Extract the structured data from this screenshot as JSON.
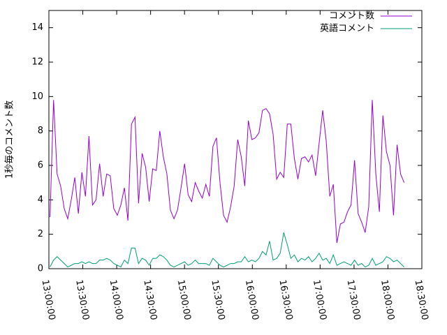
{
  "chart_data": {
    "type": "line",
    "ylabel": "1秒毎のコメント数",
    "x": [
      "13:01:00",
      "13:04:08",
      "13:07:16",
      "13:10:24",
      "13:13:32",
      "13:16:40",
      "13:19:48",
      "13:22:56",
      "13:26:04",
      "13:29:12",
      "13:32:20",
      "13:35:28",
      "13:38:36",
      "13:41:44",
      "13:44:52",
      "13:48:00",
      "13:51:08",
      "13:54:16",
      "13:57:24",
      "14:00:32",
      "14:03:40",
      "14:06:48",
      "14:09:56",
      "14:13:04",
      "14:16:12",
      "14:19:20",
      "14:22:28",
      "14:25:36",
      "14:28:44",
      "14:31:52",
      "14:35:00",
      "14:38:08",
      "14:41:16",
      "14:44:24",
      "14:47:32",
      "14:50:40",
      "14:53:48",
      "14:56:56",
      "15:00:04",
      "15:03:12",
      "15:06:20",
      "15:09:28",
      "15:12:36",
      "15:15:44",
      "15:18:52",
      "15:22:00",
      "15:25:08",
      "15:28:16",
      "15:31:24",
      "15:34:32",
      "15:37:40",
      "15:40:48",
      "15:43:56",
      "15:47:04",
      "15:50:12",
      "15:53:20",
      "15:56:28",
      "15:59:36",
      "16:02:44",
      "16:05:52",
      "16:09:00",
      "16:12:08",
      "16:15:16",
      "16:18:24",
      "16:21:32",
      "16:24:40",
      "16:27:48",
      "16:30:56",
      "16:34:04",
      "16:37:12",
      "16:40:20",
      "16:43:28",
      "16:46:36",
      "16:49:44",
      "16:52:52",
      "16:56:00",
      "16:59:08",
      "17:02:16",
      "17:05:24",
      "17:08:32",
      "17:11:40",
      "17:14:48",
      "17:17:56",
      "17:21:04",
      "17:24:12",
      "17:27:20",
      "17:30:28",
      "17:33:36",
      "17:36:44",
      "17:39:52",
      "17:43:00",
      "17:46:08",
      "17:49:16",
      "17:52:24",
      "17:55:32",
      "17:58:40",
      "18:01:48",
      "18:04:56",
      "18:08:04",
      "18:11:12",
      "18:14:20"
    ],
    "series": [
      {
        "name": "コメント数",
        "color": "#9400d3",
        "values": [
          3.0,
          9.8,
          5.5,
          4.8,
          3.5,
          2.9,
          4.0,
          5.3,
          3.2,
          5.6,
          4.2,
          7.7,
          3.7,
          4.0,
          6.1,
          4.2,
          5.5,
          5.4,
          3.5,
          3.1,
          3.7,
          4.7,
          2.8,
          8.4,
          8.8,
          3.8,
          6.7,
          5.9,
          3.9,
          5.8,
          5.7,
          8.0,
          6.5,
          5.5,
          3.4,
          2.9,
          3.4,
          4.7,
          6.1,
          4.3,
          3.9,
          5.0,
          4.5,
          4.1,
          4.9,
          4.2,
          7.1,
          7.6,
          5.0,
          3.1,
          2.7,
          3.6,
          4.8,
          7.5,
          6.5,
          4.8,
          8.6,
          7.5,
          7.6,
          7.9,
          9.2,
          9.3,
          9.0,
          7.8,
          5.2,
          5.6,
          5.3,
          8.4,
          8.4,
          6.4,
          5.2,
          6.4,
          6.5,
          6.2,
          6.6,
          5.4,
          7.3,
          9.2,
          7.4,
          4.2,
          4.9,
          1.5,
          2.6,
          2.7,
          3.3,
          3.7,
          6.3,
          3.2,
          2.7,
          2.1,
          3.6,
          9.8,
          5.5,
          3.3,
          8.9,
          6.8,
          6.0,
          3.1,
          7.2,
          5.5,
          5.0
        ]
      },
      {
        "name": "英語コメント",
        "color": "#009e73",
        "values": [
          0.1,
          0.5,
          0.7,
          0.5,
          0.3,
          0.1,
          0.2,
          0.3,
          0.3,
          0.4,
          0.3,
          0.4,
          0.3,
          0.3,
          0.5,
          0.5,
          0.6,
          0.5,
          0.3,
          0.2,
          0.1,
          0.5,
          0.3,
          1.2,
          1.2,
          0.3,
          0.6,
          0.5,
          0.2,
          0.6,
          0.6,
          0.8,
          0.7,
          0.5,
          0.2,
          0.1,
          0.2,
          0.3,
          0.4,
          0.2,
          0.3,
          0.5,
          0.3,
          0.3,
          0.3,
          0.2,
          0.6,
          0.4,
          0.2,
          0.1,
          0.2,
          0.3,
          0.3,
          0.4,
          0.4,
          0.7,
          0.4,
          0.5,
          0.4,
          0.6,
          1.0,
          0.8,
          1.6,
          0.5,
          0.6,
          0.9,
          2.1,
          1.4,
          0.6,
          0.8,
          0.4,
          0.6,
          0.5,
          0.7,
          0.4,
          0.6,
          0.9,
          0.5,
          0.6,
          0.3,
          0.8,
          0.2,
          0.3,
          0.4,
          0.3,
          0.2,
          0.5,
          0.2,
          0.3,
          0.1,
          0.2,
          0.6,
          0.2,
          0.3,
          0.4,
          0.7,
          0.6,
          0.4,
          0.5,
          0.3,
          0.1
        ]
      }
    ],
    "xlim": [
      "13:00:00",
      "18:30:00"
    ],
    "xticks": [
      "13:00:00",
      "13:30:00",
      "14:00:00",
      "14:30:00",
      "15:00:00",
      "15:30:00",
      "16:00:00",
      "16:30:00",
      "17:00:00",
      "17:30:00",
      "18:00:00",
      "18:30:00"
    ],
    "ylim": [
      0,
      15
    ],
    "yticks": [
      0,
      2,
      4,
      6,
      8,
      10,
      12,
      14
    ],
    "legend": "top-right"
  }
}
